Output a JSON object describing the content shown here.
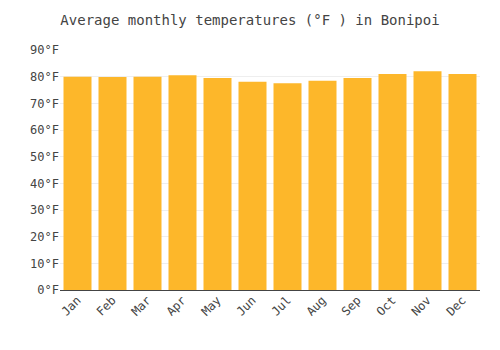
{
  "chart_data": {
    "type": "bar",
    "title": "Average monthly temperatures (°F ) in Bonipoi",
    "categories": [
      "Jan",
      "Feb",
      "Mar",
      "Apr",
      "May",
      "Jun",
      "Jul",
      "Aug",
      "Sep",
      "Oct",
      "Nov",
      "Dec"
    ],
    "values": [
      80.0,
      79.9,
      80.0,
      80.5,
      79.5,
      78.1,
      77.5,
      78.5,
      79.5,
      81.0,
      82.0,
      81.0
    ],
    "color": "#FDB72A",
    "ylim": [
      0,
      90
    ],
    "yticks": [
      {
        "value": 0,
        "label": "0°F"
      },
      {
        "value": 10,
        "label": "10°F"
      },
      {
        "value": 20,
        "label": "20°F"
      },
      {
        "value": 30,
        "label": "30°F"
      },
      {
        "value": 40,
        "label": "40°F"
      },
      {
        "value": 50,
        "label": "50°F"
      },
      {
        "value": 60,
        "label": "60°F"
      },
      {
        "value": 70,
        "label": "70°F"
      },
      {
        "value": 80,
        "label": "80°F"
      },
      {
        "value": 90,
        "label": "90°F"
      }
    ],
    "grid": true
  }
}
